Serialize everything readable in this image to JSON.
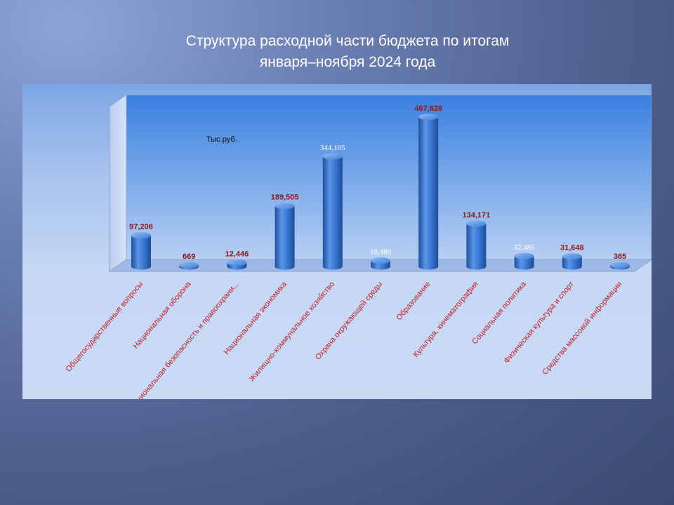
{
  "slide": {
    "title_line1": "Структура расходной части  бюджета по итогам",
    "title_line2": "января–ноября 2024 года"
  },
  "chart_data": {
    "type": "bar",
    "unit_label": "Тыс.руб.",
    "categories": [
      "Общегосударственные вопросы",
      "Национальная оборона",
      "Национальная безопасность и правоохрани...",
      "Национальная экономика",
      "Жилищно-коммунальное хозяйство",
      "Охрана окружающей среды",
      "Образование",
      "Культура, кинематография",
      "Социальная политика",
      "Физическая культура и спорт",
      "Средства массовой информации"
    ],
    "values": [
      97206,
      669,
      12446,
      189505,
      344105,
      18480,
      467628,
      134171,
      32485,
      31648,
      365
    ],
    "data_labels": [
      "97,206",
      "669",
      "12,446",
      "189,505",
      "344,105",
      "18,480",
      "467,628",
      "134,171",
      "32,485",
      "31,648",
      "365"
    ],
    "label_colors": [
      "#8b1a1a",
      "#8b1a1a",
      "#8b1a1a",
      "#8b1a1a",
      "#ffffff",
      "#ffffff",
      "#8b1a1a",
      "#8b1a1a",
      "#ffffff",
      "#8b1a1a",
      "#8b1a1a"
    ],
    "category_label_color": "#c0202a",
    "bar_color": "#2e6fd0",
    "ylim": [
      0,
      500000
    ],
    "grid": false,
    "legend": "none"
  }
}
